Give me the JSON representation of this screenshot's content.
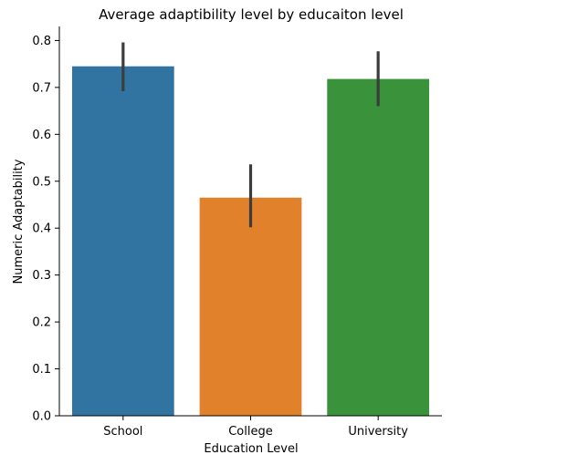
{
  "chart_data": {
    "type": "bar",
    "title": "Average adaptibility level by educaiton level",
    "xlabel": "Education Level",
    "ylabel": "Numeric Adaptability",
    "categories": [
      "School",
      "College",
      "University"
    ],
    "values": [
      0.745,
      0.465,
      0.718
    ],
    "error_low": [
      0.692,
      0.402,
      0.66
    ],
    "error_high": [
      0.796,
      0.536,
      0.777
    ],
    "colors": [
      "#3274a1",
      "#e1812c",
      "#3a923a"
    ],
    "error_color": "#3c3c3c",
    "ylim": [
      0,
      0.83
    ],
    "yticks": [
      0.0,
      0.1,
      0.2,
      0.3,
      0.4,
      0.5,
      0.6,
      0.7,
      0.8
    ],
    "ytick_labels": [
      "0.0",
      "0.1",
      "0.2",
      "0.3",
      "0.4",
      "0.5",
      "0.6",
      "0.7",
      "0.8"
    ],
    "grid": false,
    "legend": "none"
  }
}
